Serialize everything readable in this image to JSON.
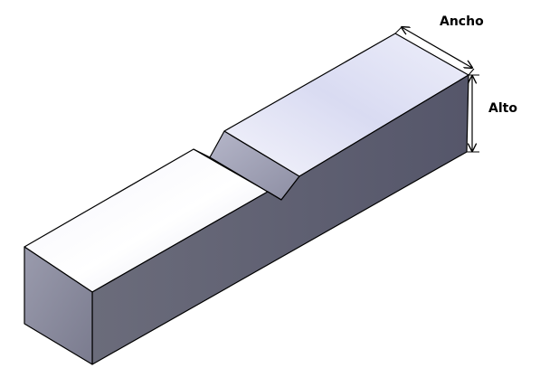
{
  "labels": {
    "width": "Ancho",
    "height": "Alto"
  },
  "colors": {
    "background": "#ffffff",
    "edge": "#000000",
    "top_face": "#e6e7f4",
    "top_face_highlight": "#f7f7fd",
    "side_face": "#5a5b6a",
    "end_face": "#8a8b9a",
    "notch_face": "#9fa0b3"
  },
  "icons": {
    "arrow": "dimension-arrowhead"
  }
}
